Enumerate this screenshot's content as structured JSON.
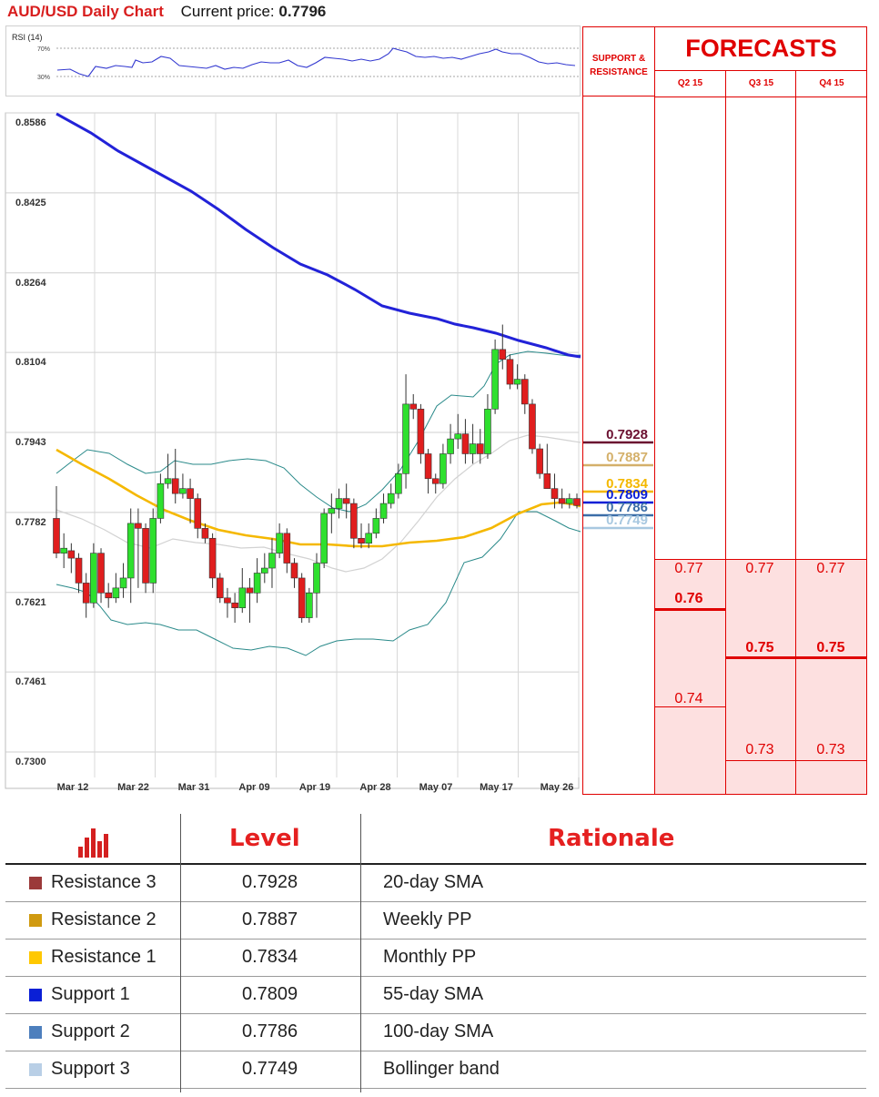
{
  "header": {
    "title": "AUD/USD Daily Chart",
    "price_label": "Current price:",
    "price_value": "0.7796"
  },
  "rsi": {
    "label": "RSI (14)",
    "upper_label": "70%",
    "lower_label": "30%"
  },
  "chart_data": {
    "type": "candlestick",
    "y_ticks": [
      "0.8586",
      "0.8425",
      "0.8264",
      "0.8104",
      "0.7943",
      "0.7782",
      "0.7621",
      "0.7461",
      "0.7300"
    ],
    "ylim": [
      0.73,
      0.8586
    ],
    "x_ticks": [
      "Mar 12",
      "Mar 22",
      "Mar 31",
      "Apr 09",
      "Apr 19",
      "Apr 28",
      "May 07",
      "May 17",
      "May 26"
    ],
    "grid": true,
    "candles": [
      [
        0.777,
        0.77,
        0.7835,
        0.769
      ],
      [
        0.77,
        0.771,
        0.774,
        0.767
      ],
      [
        0.7705,
        0.769,
        0.772,
        0.766
      ],
      [
        0.769,
        0.764,
        0.77,
        0.762
      ],
      [
        0.764,
        0.76,
        0.766,
        0.757
      ],
      [
        0.76,
        0.77,
        0.772,
        0.759
      ],
      [
        0.77,
        0.762,
        0.771,
        0.76
      ],
      [
        0.762,
        0.761,
        0.764,
        0.759
      ],
      [
        0.761,
        0.763,
        0.766,
        0.76
      ],
      [
        0.763,
        0.765,
        0.768,
        0.761
      ],
      [
        0.765,
        0.776,
        0.779,
        0.76
      ],
      [
        0.776,
        0.775,
        0.779,
        0.763
      ],
      [
        0.775,
        0.764,
        0.776,
        0.762
      ],
      [
        0.764,
        0.777,
        0.779,
        0.762
      ],
      [
        0.777,
        0.784,
        0.786,
        0.776
      ],
      [
        0.784,
        0.785,
        0.79,
        0.783
      ],
      [
        0.785,
        0.782,
        0.791,
        0.78
      ],
      [
        0.782,
        0.783,
        0.786,
        0.781
      ],
      [
        0.783,
        0.781,
        0.785,
        0.776
      ],
      [
        0.781,
        0.775,
        0.782,
        0.773
      ],
      [
        0.775,
        0.773,
        0.776,
        0.772
      ],
      [
        0.773,
        0.765,
        0.774,
        0.763
      ],
      [
        0.765,
        0.761,
        0.766,
        0.76
      ],
      [
        0.761,
        0.76,
        0.763,
        0.757
      ],
      [
        0.76,
        0.759,
        0.762,
        0.756
      ],
      [
        0.759,
        0.763,
        0.767,
        0.758
      ],
      [
        0.763,
        0.762,
        0.765,
        0.756
      ],
      [
        0.762,
        0.766,
        0.769,
        0.76
      ],
      [
        0.766,
        0.767,
        0.77,
        0.764
      ],
      [
        0.767,
        0.77,
        0.773,
        0.763
      ],
      [
        0.77,
        0.774,
        0.776,
        0.769
      ],
      [
        0.774,
        0.768,
        0.775,
        0.766
      ],
      [
        0.768,
        0.765,
        0.769,
        0.763
      ],
      [
        0.765,
        0.757,
        0.766,
        0.756
      ],
      [
        0.757,
        0.762,
        0.763,
        0.756
      ],
      [
        0.762,
        0.768,
        0.77,
        0.757
      ],
      [
        0.768,
        0.778,
        0.779,
        0.767
      ],
      [
        0.778,
        0.779,
        0.782,
        0.774
      ],
      [
        0.779,
        0.781,
        0.783,
        0.777
      ],
      [
        0.781,
        0.78,
        0.784,
        0.777
      ],
      [
        0.78,
        0.773,
        0.781,
        0.771
      ],
      [
        0.773,
        0.772,
        0.776,
        0.771
      ],
      [
        0.772,
        0.774,
        0.776,
        0.771
      ],
      [
        0.774,
        0.777,
        0.779,
        0.773
      ],
      [
        0.777,
        0.78,
        0.782,
        0.776
      ],
      [
        0.78,
        0.782,
        0.784,
        0.779
      ],
      [
        0.782,
        0.786,
        0.788,
        0.781
      ],
      [
        0.786,
        0.8,
        0.806,
        0.783
      ],
      [
        0.8,
        0.799,
        0.802,
        0.797
      ],
      [
        0.799,
        0.79,
        0.8,
        0.788
      ],
      [
        0.79,
        0.785,
        0.791,
        0.782
      ],
      [
        0.785,
        0.784,
        0.786,
        0.782
      ],
      [
        0.784,
        0.79,
        0.792,
        0.783
      ],
      [
        0.79,
        0.793,
        0.796,
        0.788
      ],
      [
        0.793,
        0.794,
        0.798,
        0.791
      ],
      [
        0.794,
        0.79,
        0.797,
        0.788
      ],
      [
        0.79,
        0.792,
        0.796,
        0.788
      ],
      [
        0.792,
        0.79,
        0.795,
        0.788
      ],
      [
        0.79,
        0.799,
        0.802,
        0.789
      ],
      [
        0.799,
        0.811,
        0.813,
        0.798
      ],
      [
        0.811,
        0.809,
        0.816,
        0.807
      ],
      [
        0.809,
        0.804,
        0.81,
        0.803
      ],
      [
        0.804,
        0.805,
        0.808,
        0.803
      ],
      [
        0.805,
        0.8,
        0.806,
        0.798
      ],
      [
        0.8,
        0.791,
        0.801,
        0.79
      ],
      [
        0.791,
        0.786,
        0.792,
        0.785
      ],
      [
        0.786,
        0.783,
        0.792,
        0.783
      ],
      [
        0.783,
        0.781,
        0.786,
        0.779
      ],
      [
        0.781,
        0.78,
        0.783,
        0.779
      ],
      [
        0.78,
        0.781,
        0.782,
        0.779
      ],
      [
        0.781,
        0.7796,
        0.782,
        0.779
      ]
    ],
    "levels": [
      {
        "value": "0.7928",
        "color": "#6b1030"
      },
      {
        "value": "0.7887",
        "color": "#d4b06a"
      },
      {
        "value": "0.7834",
        "color": "#f4b800"
      },
      {
        "value": "0.7809",
        "color": "#0a1fd6"
      },
      {
        "value": "0.7786",
        "color": "#3c6ea8"
      },
      {
        "value": "0.7749",
        "color": "#a8c8e0"
      }
    ]
  },
  "forecasts": {
    "title": "FORECASTS",
    "support_resistance_label": "SUPPORT & RESISTANCE",
    "quarters": [
      "Q2 15",
      "Q3 15",
      "Q4 15"
    ],
    "q2": {
      "v1": "0.77",
      "v2": "0.76",
      "v3": "0.74"
    },
    "q3": {
      "v1": "0.77",
      "v2": "0.75",
      "v3": "0.73"
    },
    "q4": {
      "v1": "0.77",
      "v2": "0.75",
      "v3": "0.73"
    }
  },
  "table": {
    "level_header": "Level",
    "rationale_header": "Rationale",
    "rows": [
      {
        "name": "Resistance 3",
        "level": "0.7928",
        "rationale": "20-day SMA",
        "color": "#9b3a3a"
      },
      {
        "name": "Resistance 2",
        "level": "0.7887",
        "rationale": "Weekly PP",
        "color": "#d09a10"
      },
      {
        "name": "Resistance 1",
        "level": "0.7834",
        "rationale": "Monthly PP",
        "color": "#ffc800"
      },
      {
        "name": "Support 1",
        "level": "0.7809",
        "rationale": "55-day SMA",
        "color": "#0a1fd6"
      },
      {
        "name": "Support 2",
        "level": "0.7786",
        "rationale": "100-day SMA",
        "color": "#4d7fbd"
      },
      {
        "name": "Support 3",
        "level": "0.7749",
        "rationale": "Bollinger band",
        "color": "#b9cfe6"
      }
    ]
  }
}
